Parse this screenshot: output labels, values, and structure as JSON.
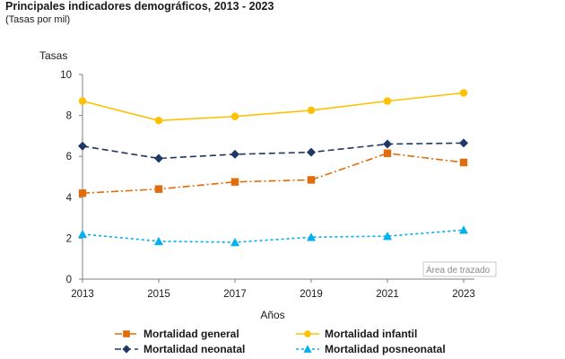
{
  "header": {
    "title": "Principales indicadores demográficos, 2013 - 2023",
    "subtitle": "(Tasas por mil)"
  },
  "tooltip": "Área de trazado",
  "chart_data": {
    "type": "line",
    "title": "Principales indicadores demográficos, 2013 - 2023",
    "subtitle": "(Tasas por mil)",
    "xlabel": "Años",
    "ylabel": "Tasas",
    "x": [
      "2013",
      "2015",
      "2017",
      "2019",
      "2021",
      "2023"
    ],
    "ylim": [
      0,
      10
    ],
    "yticks": [
      0,
      2,
      4,
      6,
      8,
      10
    ],
    "grid": false,
    "legend_position": "bottom",
    "series": [
      {
        "name": "Mortalidad general",
        "values": [
          4.2,
          4.4,
          4.75,
          4.85,
          6.15,
          5.7
        ],
        "color": "#e36c0a",
        "marker": "square",
        "dash": "dashdot"
      },
      {
        "name": "Mortalidad infantil",
        "values": [
          8.7,
          7.75,
          7.95,
          8.25,
          8.7,
          9.1
        ],
        "color": "#ffc000",
        "marker": "circle",
        "dash": "solid"
      },
      {
        "name": "Mortalidad neonatal",
        "values": [
          6.5,
          5.9,
          6.1,
          6.2,
          6.6,
          6.65
        ],
        "color": "#1f3864",
        "marker": "diamond",
        "dash": "dash"
      },
      {
        "name": "Mortalidad posneonatal",
        "values": [
          2.2,
          1.85,
          1.8,
          2.05,
          2.1,
          2.4
        ],
        "color": "#00b0f0",
        "marker": "triangle",
        "dash": "dot"
      }
    ]
  }
}
